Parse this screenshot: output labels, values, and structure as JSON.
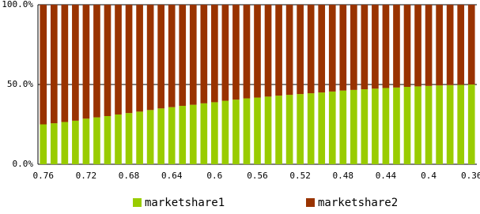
{
  "chart_data": {
    "type": "stacked_bar_percent",
    "categories": [
      "0.76",
      null,
      null,
      null,
      "0.72",
      null,
      null,
      null,
      "0.68",
      null,
      null,
      null,
      "0.64",
      null,
      null,
      null,
      "0.6",
      null,
      null,
      null,
      "0.56",
      null,
      null,
      null,
      "0.52",
      null,
      null,
      null,
      "0.48",
      null,
      null,
      null,
      "0.44",
      null,
      null,
      null,
      "0.4",
      null,
      null,
      null,
      "0.36"
    ],
    "series": [
      {
        "name": "marketshare1",
        "color": "#99cc00",
        "values": [
          25,
          25.7,
          26.5,
          27.3,
          28.6,
          29.4,
          30.2,
          31.2,
          32.1,
          33,
          34,
          35,
          35.8,
          36.6,
          37.3,
          38.2,
          38.9,
          39.8,
          40.5,
          41.3,
          41.8,
          42.4,
          43,
          43.5,
          44,
          44.5,
          45,
          45.6,
          46.2,
          46.6,
          47,
          47.4,
          47.8,
          48.1,
          48.5,
          48.8,
          49.1,
          49.4,
          49.6,
          49.8,
          50
        ]
      },
      {
        "name": "marketshare2",
        "color": "#993300",
        "values": [
          75,
          74.3,
          73.5,
          72.7,
          71.4,
          70.6,
          69.8,
          68.8,
          67.9,
          67,
          66,
          65,
          64.2,
          63.4,
          62.7,
          61.8,
          61.1,
          60.2,
          59.5,
          58.7,
          58.2,
          57.6,
          57,
          56.5,
          56,
          55.5,
          55,
          54.4,
          53.8,
          53.4,
          53,
          52.6,
          52.2,
          51.9,
          51.5,
          51.2,
          50.9,
          50.6,
          50.4,
          50.2,
          50
        ]
      }
    ],
    "ylim": [
      0,
      100
    ],
    "yticks": [
      {
        "value": 0,
        "label": "0.0%"
      },
      {
        "value": 50,
        "label": "50.0%"
      },
      {
        "value": 100,
        "label": "100.0%"
      }
    ],
    "grid": true
  }
}
